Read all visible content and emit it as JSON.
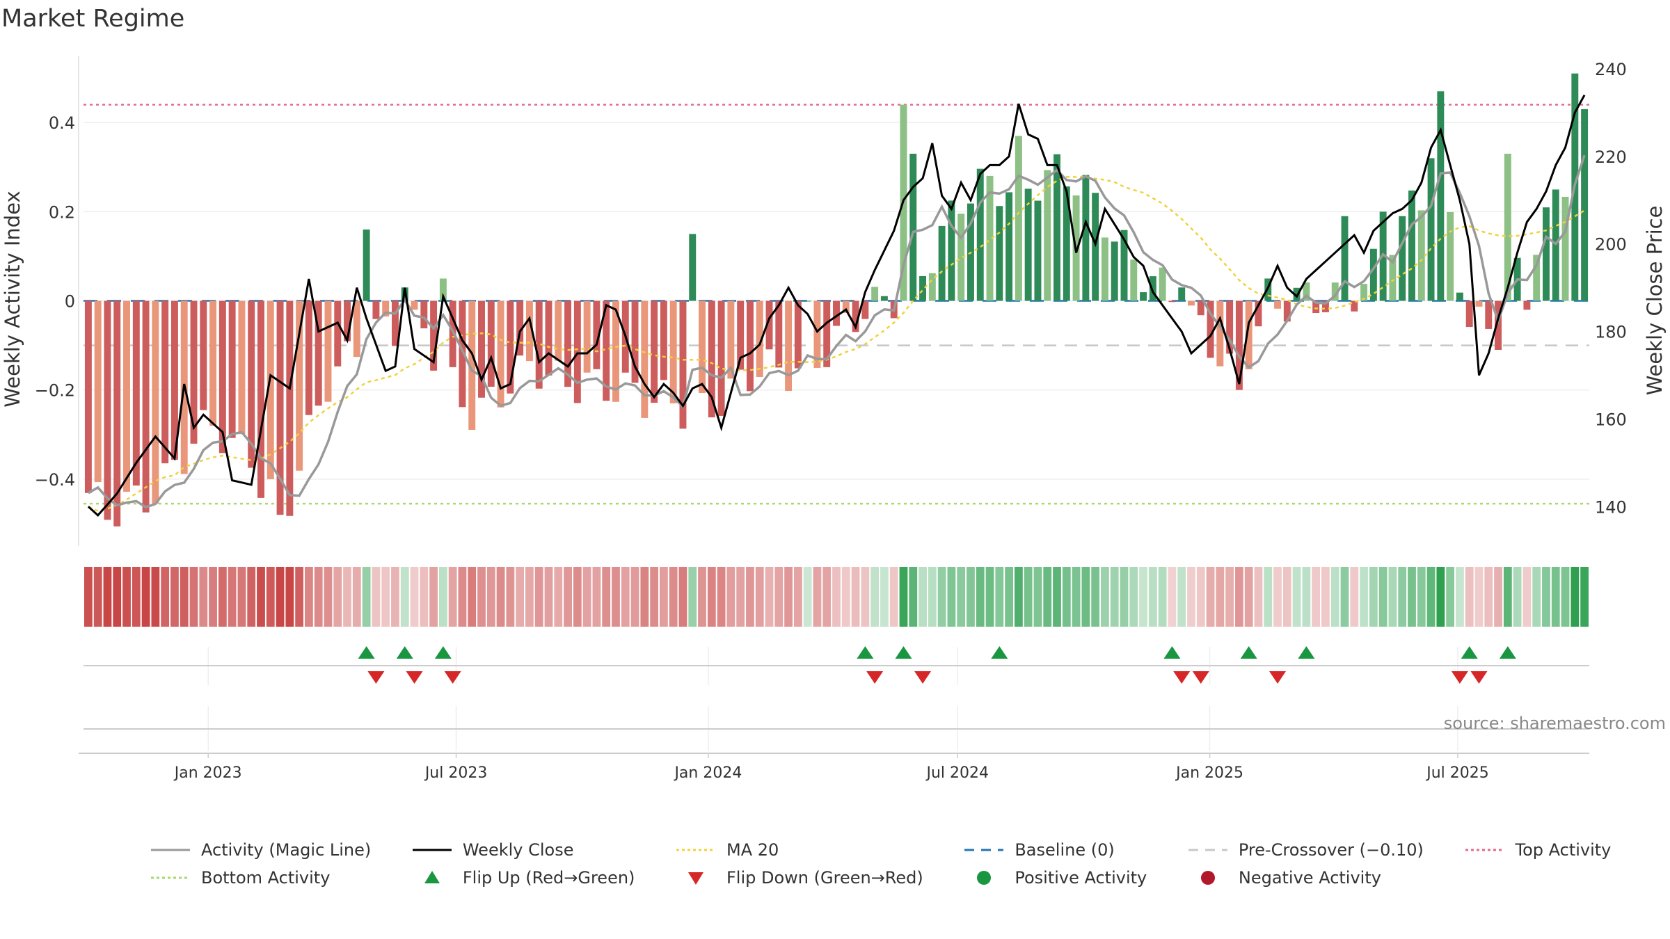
{
  "title": "Market Regime",
  "source": "source: sharemaestro.com",
  "chart_data": {
    "type": "bar",
    "title": "Market Regime",
    "ylabel": "Weekly Activity Index",
    "y2label": "Weekly Close Price",
    "ylim": [
      -0.55,
      0.55
    ],
    "y2lim": [
      131,
      243
    ],
    "yticks": [
      -0.4,
      -0.2,
      0,
      0.2,
      0.4
    ],
    "yticklabels": [
      "−0.4",
      "−0.2",
      "0",
      "0.2",
      "0.4"
    ],
    "y2ticks": [
      140,
      160,
      180,
      200,
      220,
      240
    ],
    "y2ticklabels": [
      "140",
      "160",
      "180",
      "200",
      "220",
      "240"
    ],
    "x_start": "2022-10-02",
    "x_end": "2025-10-05",
    "xticks": [
      "2023-01-01",
      "2023-07-01",
      "2024-01-01",
      "2024-07-01",
      "2025-01-01",
      "2025-07-01"
    ],
    "xticklabels": [
      "Jan 2023",
      "Jul 2023",
      "Jan 2024",
      "Jul 2024",
      "Jan 2025",
      "Jul 2025"
    ],
    "weeks": 157,
    "top_activity": 0.44,
    "bottom_activity": -0.455,
    "pre_crossover": -0.1,
    "baseline": 0,
    "activity_anchors": [
      [
        0,
        -0.46
      ],
      [
        2,
        -0.5
      ],
      [
        4,
        -0.44
      ],
      [
        7,
        -0.4
      ],
      [
        10,
        -0.36
      ],
      [
        13,
        -0.3
      ],
      [
        15,
        -0.32
      ],
      [
        17,
        -0.32
      ],
      [
        19,
        -0.44
      ],
      [
        21,
        -0.45
      ],
      [
        23,
        -0.33
      ],
      [
        25,
        -0.2
      ],
      [
        27,
        -0.12
      ],
      [
        29,
        -0.04
      ],
      [
        31,
        -0.05
      ],
      [
        33,
        -0.08
      ],
      [
        35,
        -0.1
      ],
      [
        37,
        -0.17
      ],
      [
        40,
        -0.22
      ],
      [
        43,
        -0.2
      ],
      [
        46,
        -0.18
      ],
      [
        49,
        -0.18
      ],
      [
        52,
        -0.15
      ],
      [
        55,
        -0.2
      ],
      [
        58,
        -0.25
      ],
      [
        61,
        -0.22
      ],
      [
        64,
        -0.22
      ],
      [
        67,
        -0.22
      ],
      [
        70,
        -0.18
      ],
      [
        73,
        -0.14
      ],
      [
        76,
        -0.11
      ],
      [
        79,
        -0.08
      ],
      [
        82,
        -0.03
      ],
      [
        85,
        0.04
      ],
      [
        88,
        0.12
      ],
      [
        91,
        0.2
      ],
      [
        94,
        0.25
      ],
      [
        97,
        0.28
      ],
      [
        99,
        0.29
      ],
      [
        101,
        0.28
      ],
      [
        103,
        0.24
      ],
      [
        106,
        0.18
      ],
      [
        109,
        0.12
      ],
      [
        111,
        0.06
      ],
      [
        113,
        0.0
      ],
      [
        115,
        -0.07
      ],
      [
        117,
        -0.1
      ],
      [
        119,
        -0.14
      ],
      [
        121,
        -0.08
      ],
      [
        123,
        0.0
      ],
      [
        125,
        -0.03
      ],
      [
        127,
        -0.02
      ],
      [
        129,
        0.0
      ],
      [
        132,
        0.05
      ],
      [
        135,
        0.1
      ],
      [
        138,
        0.18
      ],
      [
        140,
        0.24
      ],
      [
        142,
        0.2
      ],
      [
        144,
        -0.02
      ],
      [
        146,
        -0.06
      ],
      [
        148,
        -0.02
      ],
      [
        150,
        0.07
      ],
      [
        152,
        0.18
      ],
      [
        154,
        0.3
      ],
      [
        156,
        0.38
      ]
    ],
    "activity_spikes": [
      [
        19,
        -0.4
      ],
      [
        20,
        -0.48
      ],
      [
        29,
        0.16
      ],
      [
        33,
        0.03
      ],
      [
        37,
        0.05
      ],
      [
        63,
        0.01
      ],
      [
        63,
        0.15
      ],
      [
        75,
        0.0
      ],
      [
        85,
        0.44
      ],
      [
        86,
        0.33
      ],
      [
        97,
        0.37
      ],
      [
        114,
        0.03
      ],
      [
        120,
        -0.2
      ],
      [
        123,
        0.05
      ],
      [
        131,
        0.19
      ],
      [
        135,
        0.2
      ],
      [
        137,
        0.19
      ],
      [
        140,
        0.32
      ],
      [
        141,
        0.47
      ],
      [
        148,
        0.33
      ],
      [
        147,
        -0.11
      ],
      [
        150,
        -0.02
      ],
      [
        155,
        0.51
      ],
      [
        156,
        0.43
      ]
    ],
    "close_anchors": [
      [
        0,
        140
      ],
      [
        1,
        138
      ],
      [
        3,
        143
      ],
      [
        5,
        150
      ],
      [
        7,
        156
      ],
      [
        9,
        151
      ],
      [
        10,
        168
      ],
      [
        11,
        158
      ],
      [
        12,
        161
      ],
      [
        14,
        157
      ],
      [
        15,
        146
      ],
      [
        17,
        145
      ],
      [
        19,
        170
      ],
      [
        21,
        167
      ],
      [
        23,
        192
      ],
      [
        24,
        180
      ],
      [
        26,
        182
      ],
      [
        27,
        178
      ],
      [
        28,
        190
      ],
      [
        29,
        183
      ],
      [
        31,
        171
      ],
      [
        32,
        172
      ],
      [
        33,
        190
      ],
      [
        34,
        176
      ],
      [
        36,
        173
      ],
      [
        37,
        188
      ],
      [
        39,
        178
      ],
      [
        40,
        175
      ],
      [
        41,
        169
      ],
      [
        42,
        174
      ],
      [
        43,
        167
      ],
      [
        44,
        168
      ],
      [
        45,
        180
      ],
      [
        46,
        183
      ],
      [
        47,
        173
      ],
      [
        48,
        175
      ],
      [
        50,
        172
      ],
      [
        51,
        175
      ],
      [
        52,
        175
      ],
      [
        53,
        177
      ],
      [
        54,
        186
      ],
      [
        55,
        185
      ],
      [
        56,
        179
      ],
      [
        57,
        172
      ],
      [
        58,
        168
      ],
      [
        59,
        165
      ],
      [
        60,
        168
      ],
      [
        61,
        166
      ],
      [
        62,
        163
      ],
      [
        63,
        167
      ],
      [
        64,
        168
      ],
      [
        65,
        165
      ],
      [
        66,
        158
      ],
      [
        67,
        166
      ],
      [
        68,
        174
      ],
      [
        69,
        175
      ],
      [
        70,
        177
      ],
      [
        71,
        183
      ],
      [
        72,
        186
      ],
      [
        73,
        190
      ],
      [
        74,
        186
      ],
      [
        75,
        184
      ],
      [
        76,
        180
      ],
      [
        77,
        182
      ],
      [
        79,
        185
      ],
      [
        80,
        181
      ],
      [
        81,
        189
      ],
      [
        82,
        194
      ],
      [
        84,
        203
      ],
      [
        85,
        210
      ],
      [
        86,
        213
      ],
      [
        87,
        215
      ],
      [
        88,
        223
      ],
      [
        89,
        211
      ],
      [
        90,
        208
      ],
      [
        91,
        214
      ],
      [
        92,
        210
      ],
      [
        93,
        216
      ],
      [
        94,
        218
      ],
      [
        95,
        218
      ],
      [
        96,
        220
      ],
      [
        97,
        232
      ],
      [
        98,
        225
      ],
      [
        99,
        224
      ],
      [
        100,
        218
      ],
      [
        101,
        218
      ],
      [
        102,
        212
      ],
      [
        103,
        198
      ],
      [
        104,
        205
      ],
      [
        105,
        200
      ],
      [
        106,
        208
      ],
      [
        108,
        201
      ],
      [
        109,
        197
      ],
      [
        110,
        195
      ],
      [
        111,
        189
      ],
      [
        112,
        186
      ],
      [
        113,
        183
      ],
      [
        114,
        180
      ],
      [
        115,
        175
      ],
      [
        116,
        177
      ],
      [
        117,
        179
      ],
      [
        118,
        183
      ],
      [
        119,
        176
      ],
      [
        120,
        168
      ],
      [
        121,
        182
      ],
      [
        122,
        186
      ],
      [
        123,
        190
      ],
      [
        124,
        195
      ],
      [
        125,
        190
      ],
      [
        126,
        188
      ],
      [
        127,
        192
      ],
      [
        129,
        196
      ],
      [
        130,
        198
      ],
      [
        131,
        200
      ],
      [
        132,
        202
      ],
      [
        133,
        198
      ],
      [
        134,
        203
      ],
      [
        135,
        205
      ],
      [
        136,
        207
      ],
      [
        137,
        208
      ],
      [
        138,
        210
      ],
      [
        139,
        214
      ],
      [
        140,
        222
      ],
      [
        141,
        226
      ],
      [
        142,
        218
      ],
      [
        143,
        210
      ],
      [
        144,
        200
      ],
      [
        145,
        170
      ],
      [
        146,
        175
      ],
      [
        147,
        183
      ],
      [
        148,
        190
      ],
      [
        149,
        198
      ],
      [
        150,
        205
      ],
      [
        151,
        208
      ],
      [
        152,
        212
      ],
      [
        153,
        218
      ],
      [
        154,
        222
      ],
      [
        155,
        230
      ],
      [
        156,
        234
      ]
    ],
    "weekly_close_note": "",
    "flip_up_weeks": [
      29,
      33,
      37,
      81,
      85,
      95,
      113,
      121,
      127,
      144,
      148
    ],
    "flip_down_weeks": [
      30,
      34,
      38,
      82,
      87,
      114,
      116,
      124,
      143,
      145
    ],
    "regime_note": "",
    "series": [
      {
        "name": "Activity (Magic Line)",
        "color": "#999999",
        "style": "solid"
      },
      {
        "name": "Weekly Close",
        "color": "#000000",
        "style": "solid"
      },
      {
        "name": "MA 20",
        "color": "#f0d23c",
        "style": "dotted"
      },
      {
        "name": "Baseline (0)",
        "color": "#1f77b4",
        "style": "dashed"
      },
      {
        "name": "Pre-Crossover (−0.10)",
        "color": "#c8c8c8",
        "style": "dashed"
      },
      {
        "name": "Top Activity",
        "color": "#e06a8a",
        "style": "dotted"
      },
      {
        "name": "Bottom Activity",
        "color": "#a6d96a",
        "style": "dotted"
      },
      {
        "name": "Flip Up (Red→Green)",
        "color": "#1a9641",
        "style": "triangle-up"
      },
      {
        "name": "Flip Down (Green→Red)",
        "color": "#d62728",
        "style": "triangle-down"
      },
      {
        "name": "Positive Activity",
        "color": "#1a9641",
        "style": "dot"
      },
      {
        "name": "Negative Activity",
        "color": "#b2182b",
        "style": "dot"
      }
    ],
    "colors": {
      "pos_strong": "#2e8b57",
      "pos_light": "#8cc084",
      "neg_strong": "#cd5c5c",
      "neg_light": "#e9967a"
    }
  }
}
